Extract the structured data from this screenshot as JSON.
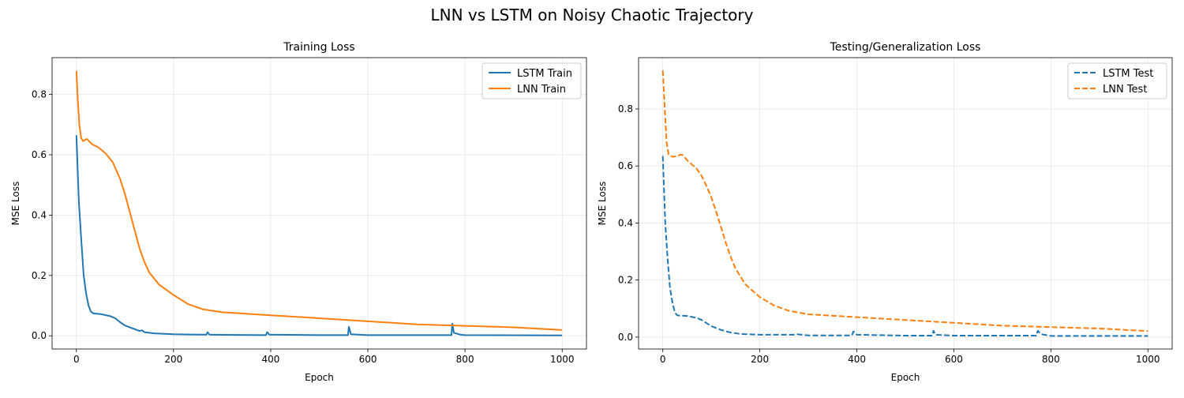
{
  "suptitle": "LNN vs LSTM on Noisy Chaotic Trajectory",
  "colors": {
    "lstm": "#1f77b4",
    "lnn": "#ff7f0e",
    "grid": "#e5e5e5"
  },
  "chart_data": [
    {
      "type": "line",
      "title": "Training Loss",
      "xlabel": "Epoch",
      "ylabel": "MSE Loss",
      "xlim": [
        -50,
        1050
      ],
      "ylim": [
        -0.044,
        0.922
      ],
      "xticks": [
        0,
        200,
        400,
        600,
        800,
        1000
      ],
      "xtick_labels": [
        "0",
        "200",
        "400",
        "600",
        "800",
        "1000"
      ],
      "yticks": [
        0.0,
        0.2,
        0.4,
        0.6,
        0.8
      ],
      "ytick_labels": [
        "0.0",
        "0.2",
        "0.4",
        "0.6",
        "0.8"
      ],
      "grid": true,
      "legend": "top-right",
      "series": [
        {
          "name": "LSTM Train",
          "color": "#1f77b4",
          "style": "solid",
          "x": [
            0,
            5,
            10,
            15,
            20,
            25,
            30,
            35,
            50,
            70,
            80,
            90,
            100,
            120,
            130,
            135,
            140,
            160,
            200,
            250,
            268,
            270,
            274,
            300,
            390,
            393,
            397,
            500,
            559,
            561,
            565,
            600,
            772,
            774,
            777,
            790,
            800,
            1000
          ],
          "y": [
            0.665,
            0.45,
            0.32,
            0.2,
            0.14,
            0.1,
            0.08,
            0.074,
            0.072,
            0.065,
            0.058,
            0.045,
            0.034,
            0.022,
            0.016,
            0.018,
            0.012,
            0.008,
            0.005,
            0.004,
            0.004,
            0.012,
            0.004,
            0.003,
            0.002,
            0.012,
            0.004,
            0.002,
            0.002,
            0.03,
            0.005,
            0.002,
            0.002,
            0.04,
            0.01,
            0.004,
            0.002,
            0.001
          ]
        },
        {
          "name": "LNN Train",
          "color": "#ff7f0e",
          "style": "solid",
          "x": [
            0,
            3,
            6,
            10,
            14,
            18,
            22,
            26,
            32,
            45,
            60,
            75,
            90,
            100,
            110,
            120,
            130,
            140,
            150,
            170,
            200,
            230,
            260,
            300,
            400,
            500,
            600,
            700,
            800,
            900,
            1000
          ],
          "y": [
            0.878,
            0.78,
            0.7,
            0.655,
            0.645,
            0.65,
            0.652,
            0.645,
            0.635,
            0.625,
            0.605,
            0.575,
            0.52,
            0.47,
            0.41,
            0.35,
            0.29,
            0.245,
            0.21,
            0.17,
            0.135,
            0.105,
            0.088,
            0.078,
            0.068,
            0.058,
            0.048,
            0.038,
            0.033,
            0.028,
            0.019
          ]
        }
      ]
    },
    {
      "type": "line",
      "title": "Testing/Generalization Loss",
      "xlabel": "Epoch",
      "ylabel": "MSE Loss",
      "xlim": [
        -50,
        1050
      ],
      "ylim": [
        -0.042,
        0.98
      ],
      "xticks": [
        0,
        200,
        400,
        600,
        800,
        1000
      ],
      "xtick_labels": [
        "0",
        "200",
        "400",
        "600",
        "800",
        "1000"
      ],
      "yticks": [
        0.0,
        0.2,
        0.4,
        0.6,
        0.8
      ],
      "ytick_labels": [
        "0.0",
        "0.2",
        "0.4",
        "0.6",
        "0.8"
      ],
      "grid": true,
      "legend": "top-right",
      "series": [
        {
          "name": "LSTM Test",
          "color": "#1f77b4",
          "style": "dashed",
          "x": [
            0,
            5,
            10,
            15,
            20,
            25,
            30,
            50,
            70,
            80,
            100,
            120,
            140,
            160,
            200,
            270,
            275,
            300,
            390,
            393,
            400,
            500,
            556,
            558,
            562,
            600,
            770,
            773,
            780,
            800,
            1000
          ],
          "y": [
            0.635,
            0.4,
            0.27,
            0.17,
            0.12,
            0.085,
            0.076,
            0.074,
            0.067,
            0.06,
            0.038,
            0.025,
            0.016,
            0.011,
            0.008,
            0.008,
            0.01,
            0.006,
            0.006,
            0.02,
            0.008,
            0.005,
            0.005,
            0.022,
            0.008,
            0.005,
            0.005,
            0.022,
            0.01,
            0.004,
            0.004
          ]
        },
        {
          "name": "LNN Test",
          "color": "#ff7f0e",
          "style": "dashed",
          "x": [
            0,
            4,
            8,
            12,
            20,
            30,
            36,
            42,
            50,
            60,
            70,
            80,
            90,
            100,
            110,
            120,
            130,
            140,
            150,
            170,
            200,
            230,
            260,
            300,
            400,
            500,
            600,
            700,
            800,
            900,
            1000
          ],
          "y": [
            0.935,
            0.8,
            0.68,
            0.64,
            0.632,
            0.635,
            0.64,
            0.638,
            0.62,
            0.605,
            0.59,
            0.565,
            0.53,
            0.49,
            0.44,
            0.385,
            0.33,
            0.28,
            0.24,
            0.185,
            0.14,
            0.11,
            0.092,
            0.08,
            0.07,
            0.06,
            0.05,
            0.04,
            0.035,
            0.03,
            0.021
          ]
        }
      ]
    }
  ]
}
